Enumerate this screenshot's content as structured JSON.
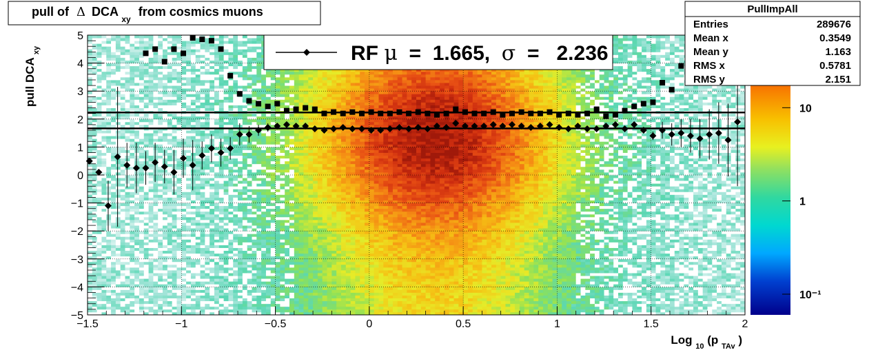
{
  "title": {
    "main": "pull of",
    "delta": "Δ",
    "dca": "DCA",
    "dca_sub": "xy",
    "rest": "from cosmics muons"
  },
  "stats_box": {
    "name": "PullImpAll",
    "rows": [
      {
        "label": "Entries",
        "value": "289676"
      },
      {
        "label": "Mean x",
        "value": "0.3549"
      },
      {
        "label": "Mean y",
        "value": "1.163"
      },
      {
        "label": "RMS x",
        "value": "0.5781"
      },
      {
        "label": "RMS y",
        "value": "2.151"
      }
    ]
  },
  "legend": {
    "text_pre": "RF ",
    "mu": "μ",
    "mid": " =  1.665, ",
    "sigma": "σ",
    "post": " =   2.236"
  },
  "colors": {
    "mean_marker": "#000000",
    "rms_marker": "#000000",
    "fit_line": "#000000"
  },
  "chart_data": {
    "type": "heatmap",
    "xlabel": {
      "base": "Log",
      "sub1": "10",
      "open": "(p",
      "sub2": "TAv",
      "close": ")"
    },
    "ylabel": {
      "base": "pull DCA",
      "sub": "xy"
    },
    "xlim": [
      -1.5,
      2
    ],
    "ylim": [
      -5,
      5
    ],
    "x_ticks": [
      "−1.5",
      "−1",
      "−0.5",
      "0",
      "0.5",
      "1",
      "1.5",
      "2"
    ],
    "x_tick_values": [
      -1.5,
      -1,
      -0.5,
      0,
      0.5,
      1,
      1.5,
      2
    ],
    "y_ticks": [
      "−5",
      "−4",
      "−3",
      "−2",
      "−1",
      "0",
      "1",
      "2",
      "3",
      "4",
      "5"
    ],
    "y_tick_values": [
      -5,
      -4,
      -3,
      -2,
      -1,
      0,
      1,
      2,
      3,
      4,
      5
    ],
    "z_scale": "log",
    "z_ticks": [
      "10",
      "1",
      "10⁻¹"
    ],
    "z_tick_values": [
      10,
      1,
      0.1
    ],
    "grid": true,
    "hlines": [
      {
        "name": "RF μ",
        "y": 1.665
      },
      {
        "name": "σ",
        "y": 2.236
      }
    ],
    "series": [
      {
        "marker": "diamond",
        "x": [
          -1.49,
          -1.44,
          -1.39,
          -1.34,
          -1.29,
          -1.24,
          -1.19,
          -1.14,
          -1.09,
          -1.04,
          -0.99,
          -0.94,
          -0.89,
          -0.84,
          -0.79,
          -0.74,
          -0.69,
          -0.64,
          -0.59,
          -0.54,
          -0.49,
          -0.44,
          -0.39,
          -0.34,
          -0.29,
          -0.24,
          -0.19,
          -0.14,
          -0.09,
          -0.04,
          0.01,
          0.06,
          0.11,
          0.16,
          0.21,
          0.26,
          0.31,
          0.36,
          0.41,
          0.46,
          0.51,
          0.56,
          0.61,
          0.66,
          0.71,
          0.76,
          0.81,
          0.86,
          0.91,
          0.96,
          1.01,
          1.06,
          1.11,
          1.16,
          1.21,
          1.26,
          1.31,
          1.36,
          1.41,
          1.46,
          1.51,
          1.56,
          1.61,
          1.66,
          1.71,
          1.76,
          1.81,
          1.86,
          1.91,
          1.96
        ],
        "y": [
          0.5,
          0.1,
          -1.1,
          0.65,
          0.35,
          0.25,
          0.25,
          0.45,
          0.3,
          0.1,
          0.6,
          0.35,
          0.7,
          0.95,
          0.8,
          0.95,
          1.45,
          1.45,
          1.6,
          1.7,
          1.75,
          1.8,
          1.75,
          1.75,
          1.65,
          1.6,
          1.65,
          1.7,
          1.65,
          1.65,
          1.6,
          1.6,
          1.65,
          1.7,
          1.65,
          1.7,
          1.65,
          1.75,
          1.7,
          1.85,
          1.75,
          1.75,
          1.75,
          1.8,
          1.75,
          1.8,
          1.75,
          1.7,
          1.75,
          1.8,
          1.7,
          1.65,
          1.75,
          1.65,
          1.65,
          1.75,
          1.8,
          1.65,
          1.8,
          1.6,
          1.4,
          1.6,
          1.45,
          1.5,
          1.4,
          1.3,
          1.45,
          1.5,
          1.25,
          1.9
        ],
        "err": [
          0,
          0,
          0.9,
          2.5,
          0.8,
          0.9,
          0.6,
          0.7,
          0.6,
          0.8,
          0.7,
          0.9,
          0.5,
          0.5,
          0.5,
          0.4,
          0.4,
          0.3,
          0.2,
          0.15,
          0.1,
          0.1,
          0.1,
          0.1,
          0.1,
          0.1,
          0.1,
          0.1,
          0.1,
          0.1,
          0.1,
          0.1,
          0.1,
          0.1,
          0.1,
          0.1,
          0.1,
          0.1,
          0.1,
          0.1,
          0.1,
          0.1,
          0.1,
          0.1,
          0.1,
          0.1,
          0.1,
          0.1,
          0.1,
          0.1,
          0.1,
          0.1,
          0.1,
          0.1,
          0.1,
          0.1,
          0.1,
          0.1,
          0.1,
          0.1,
          0.15,
          0.3,
          0.4,
          0.5,
          0.6,
          0.7,
          0.9,
          1.1,
          1.3,
          2.3
        ]
      },
      {
        "marker": "square",
        "x": [
          -1.49,
          -1.44,
          -1.39,
          -1.34,
          -1.29,
          -1.24,
          -1.19,
          -1.14,
          -1.09,
          -1.04,
          -0.99,
          -0.94,
          -0.89,
          -0.84,
          -0.79,
          -0.74,
          -0.69,
          -0.64,
          -0.59,
          -0.54,
          -0.49,
          -0.44,
          -0.39,
          -0.34,
          -0.29,
          -0.24,
          -0.19,
          -0.14,
          -0.09,
          -0.04,
          0.01,
          0.06,
          0.11,
          0.16,
          0.21,
          0.26,
          0.31,
          0.36,
          0.41,
          0.46,
          0.51,
          0.56,
          0.61,
          0.66,
          0.71,
          0.76,
          0.81,
          0.86,
          0.91,
          0.96,
          1.01,
          1.06,
          1.11,
          1.16,
          1.21,
          1.26,
          1.31,
          1.36,
          1.41,
          1.46,
          1.51,
          1.56,
          1.61,
          1.66,
          1.71,
          1.76,
          1.81,
          1.86,
          1.91,
          1.96
        ],
        "y": [
          null,
          null,
          null,
          null,
          null,
          null,
          4.35,
          4.5,
          4.05,
          4.5,
          4.35,
          4.9,
          4.85,
          4.8,
          4.5,
          3.55,
          2.9,
          2.65,
          2.55,
          2.45,
          2.55,
          2.3,
          2.35,
          2.4,
          2.35,
          2.2,
          2.25,
          2.2,
          2.25,
          2.2,
          2.25,
          2.2,
          2.2,
          2.25,
          2.2,
          2.25,
          2.2,
          2.15,
          2.2,
          2.35,
          2.25,
          2.2,
          2.2,
          2.25,
          2.15,
          2.2,
          2.25,
          2.2,
          2.2,
          2.25,
          2.15,
          2.2,
          2.15,
          2.2,
          2.35,
          2.1,
          2.15,
          2.3,
          2.45,
          2.55,
          2.6,
          3.3,
          3.05,
          3.9,
          4.05,
          4.05,
          4.75,
          null,
          null,
          null
        ]
      }
    ]
  }
}
